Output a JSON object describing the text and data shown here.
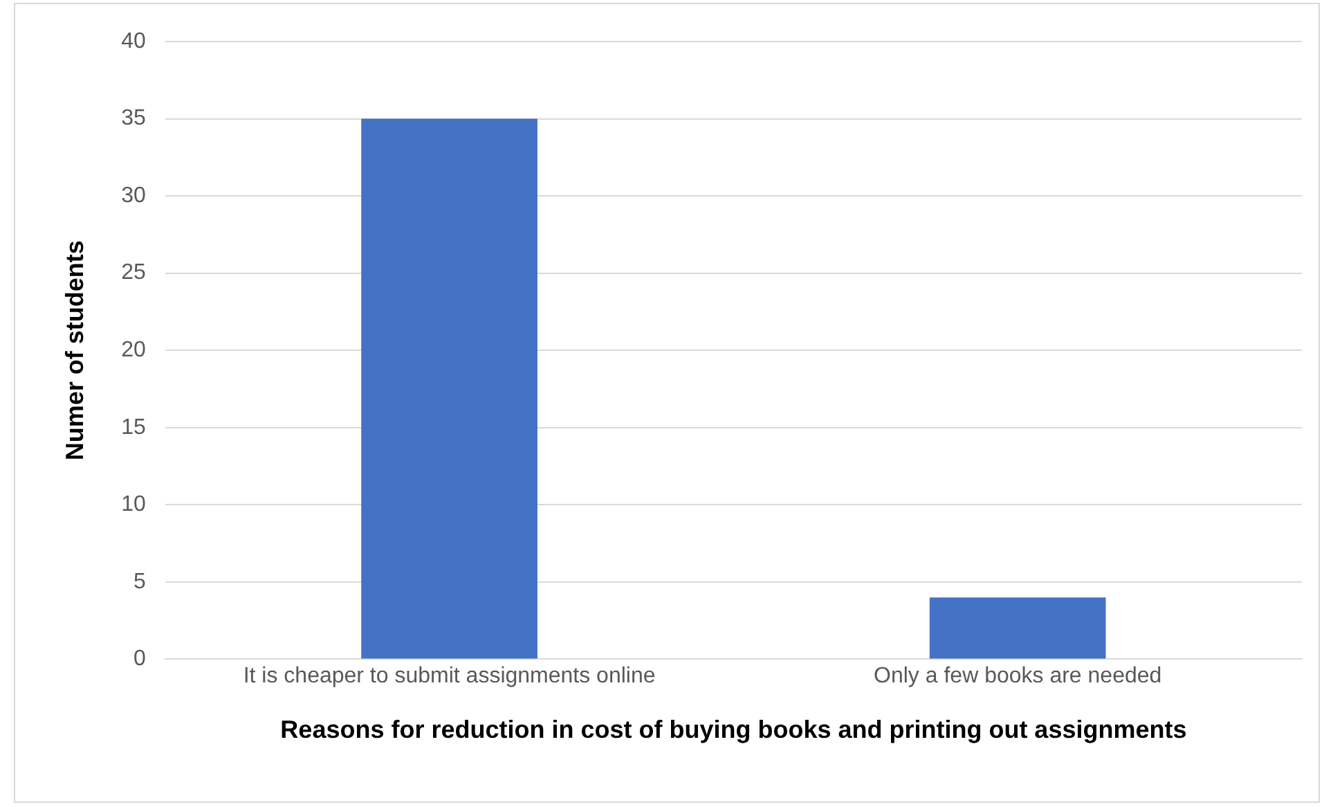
{
  "chart_data": {
    "type": "bar",
    "xlabel": "Reasons for reduction in cost of buying books and printing out assignments",
    "ylabel": "Numer of students",
    "categories": [
      "It is cheaper to submit assignments online",
      "Only a few books are needed"
    ],
    "values": [
      35,
      4
    ],
    "color": "#4472c4",
    "ylim": [
      0,
      40
    ],
    "yticks": [
      0,
      5,
      10,
      15,
      20,
      25,
      30,
      35,
      40
    ],
    "grid": "y",
    "legend": false
  }
}
